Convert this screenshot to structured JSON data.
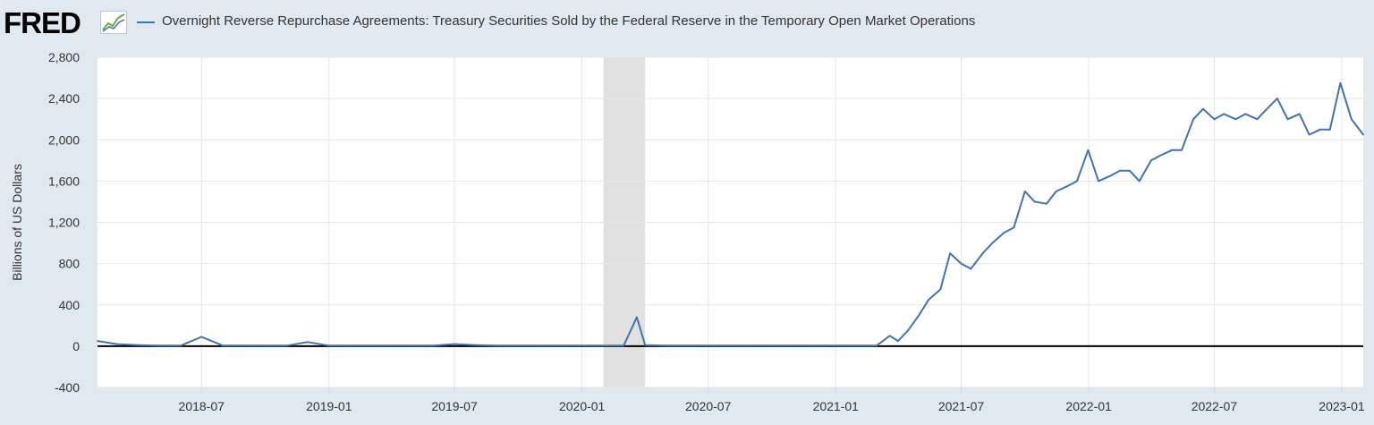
{
  "header": {
    "logo_text": "FRED",
    "logo_icon": "line-graph-icon",
    "series_title": "Overnight Reverse Repurchase Agreements: Treasury Securities Sold by the Federal Reserve in the Temporary Open Market Operations"
  },
  "colors": {
    "series": "#4572a7",
    "background": "#e1e9f0",
    "plot": "#ffffff",
    "recession": "#e1e1e1",
    "zero_line": "#000000"
  },
  "chart_data": {
    "type": "line",
    "title": "Overnight Reverse Repurchase Agreements: Treasury Securities Sold by the Federal Reserve in the Temporary Open Market Operations",
    "xlabel": "",
    "ylabel": "Billions of US Dollars",
    "ylim": [
      -400,
      2800
    ],
    "yticks": [
      -400,
      0,
      400,
      800,
      1200,
      1600,
      2000,
      2400,
      2800
    ],
    "ytick_labels": [
      "-400",
      "0",
      "400",
      "800",
      "1,200",
      "1,600",
      "2,000",
      "2,400",
      "2,800"
    ],
    "xlim": [
      "2018-02-01",
      "2023-02-01"
    ],
    "xticks": [
      "2018-07-01",
      "2019-01-01",
      "2019-07-01",
      "2020-01-01",
      "2020-07-01",
      "2021-01-01",
      "2021-07-01",
      "2022-01-01",
      "2022-07-01",
      "2023-01-01"
    ],
    "xtick_labels": [
      "2018-07",
      "2019-01",
      "2019-07",
      "2020-01",
      "2020-07",
      "2021-01",
      "2021-07",
      "2022-01",
      "2022-07",
      "2023-01"
    ],
    "grid": true,
    "legend": "top-left",
    "recession_shading": [
      [
        "2020-02-01",
        "2020-04-01"
      ]
    ],
    "zero_line": true,
    "series": [
      {
        "name": "Overnight Reverse Repurchase Agreements: Treasury Securities Sold by the Federal Reserve in the Temporary Open Market Operations",
        "x": [
          "2018-02-01",
          "2018-03-01",
          "2018-04-01",
          "2018-05-01",
          "2018-06-01",
          "2018-07-01",
          "2018-08-01",
          "2018-09-01",
          "2018-10-01",
          "2018-11-01",
          "2018-12-01",
          "2019-01-01",
          "2019-02-01",
          "2019-03-01",
          "2019-04-01",
          "2019-05-01",
          "2019-06-01",
          "2019-07-01",
          "2019-08-01",
          "2019-09-01",
          "2019-10-01",
          "2019-11-01",
          "2019-12-01",
          "2020-01-01",
          "2020-02-01",
          "2020-03-01",
          "2020-03-20",
          "2020-04-01",
          "2020-05-01",
          "2020-06-01",
          "2020-07-01",
          "2020-08-01",
          "2020-09-01",
          "2020-10-01",
          "2020-11-01",
          "2020-12-01",
          "2021-01-01",
          "2021-02-01",
          "2021-03-01",
          "2021-03-20",
          "2021-04-01",
          "2021-04-15",
          "2021-05-01",
          "2021-05-15",
          "2021-06-01",
          "2021-06-15",
          "2021-07-01",
          "2021-07-15",
          "2021-08-01",
          "2021-08-15",
          "2021-09-01",
          "2021-09-15",
          "2021-10-01",
          "2021-10-15",
          "2021-11-01",
          "2021-11-15",
          "2021-12-01",
          "2021-12-15",
          "2021-12-31",
          "2022-01-15",
          "2022-02-01",
          "2022-02-15",
          "2022-03-01",
          "2022-03-15",
          "2022-04-01",
          "2022-04-15",
          "2022-05-01",
          "2022-05-15",
          "2022-06-01",
          "2022-06-15",
          "2022-07-01",
          "2022-07-15",
          "2022-08-01",
          "2022-08-15",
          "2022-09-01",
          "2022-09-15",
          "2022-09-30",
          "2022-10-15",
          "2022-11-01",
          "2022-11-15",
          "2022-12-01",
          "2022-12-15",
          "2022-12-30",
          "2023-01-15",
          "2023-02-01"
        ],
        "y": [
          50,
          20,
          10,
          5,
          5,
          90,
          5,
          5,
          5,
          5,
          40,
          5,
          5,
          5,
          5,
          5,
          5,
          20,
          10,
          5,
          5,
          5,
          5,
          5,
          5,
          5,
          280,
          10,
          5,
          5,
          5,
          5,
          5,
          5,
          5,
          5,
          5,
          5,
          5,
          100,
          50,
          150,
          300,
          450,
          550,
          900,
          800,
          750,
          900,
          1000,
          1100,
          1150,
          1500,
          1400,
          1380,
          1500,
          1550,
          1600,
          1900,
          1600,
          1650,
          1700,
          1700,
          1600,
          1800,
          1850,
          1900,
          1900,
          2200,
          2300,
          2200,
          2250,
          2200,
          2250,
          2200,
          2300,
          2400,
          2200,
          2250,
          2050,
          2100,
          2100,
          2550,
          2200,
          2050
        ]
      }
    ]
  }
}
